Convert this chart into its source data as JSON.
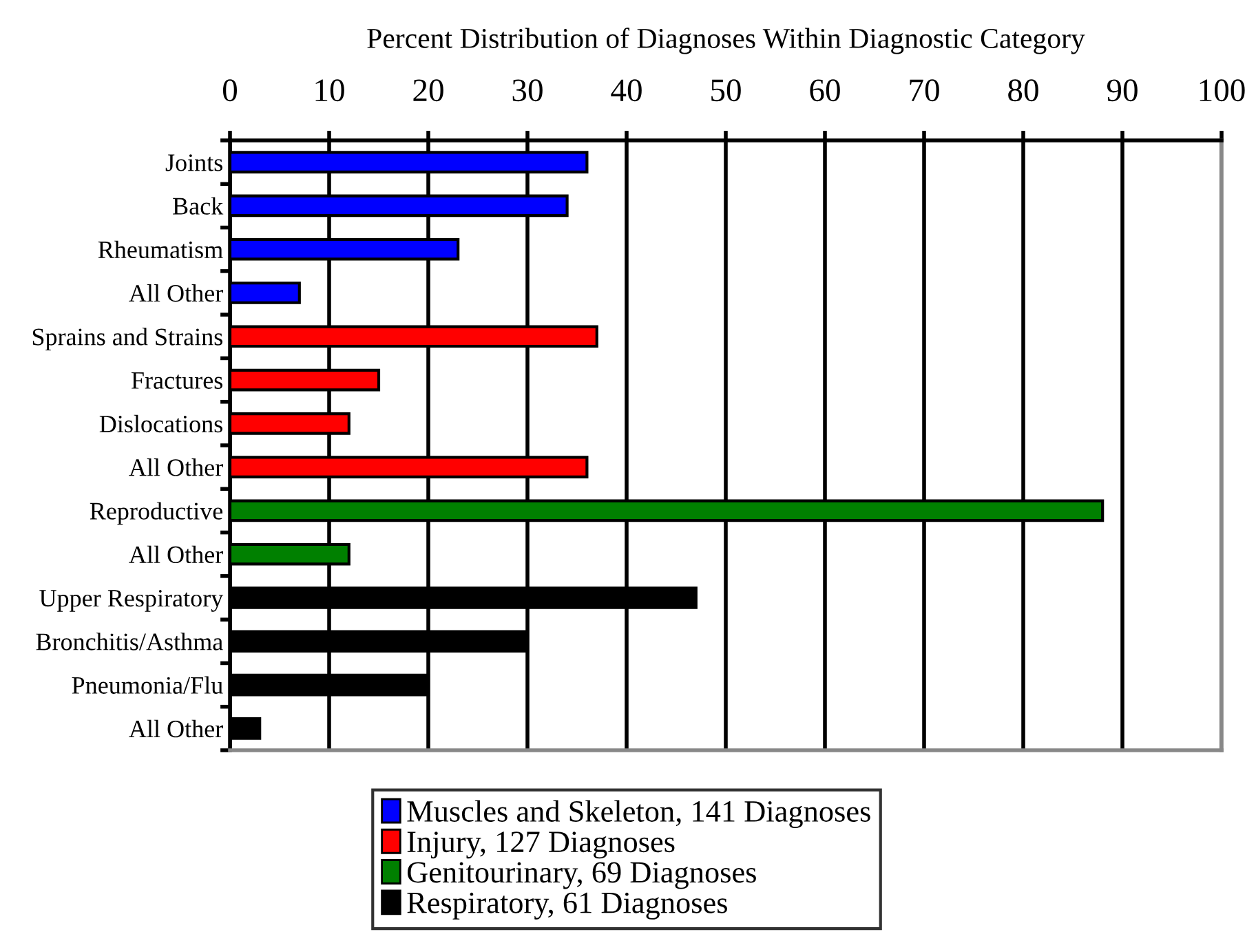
{
  "chart_data": {
    "type": "bar",
    "orientation": "horizontal",
    "xlabel": "Percent Distribution of Diagnoses Within Diagnostic Category",
    "categories": [
      "Joints",
      "Back",
      "Rheumatism",
      "All Other",
      "Sprains and Strains",
      "Fractures",
      "Dislocations",
      "All Other",
      "Reproductive",
      "All Other",
      "Upper Respiratory",
      "Bronchitis/Asthma",
      "Pneumonia/Flu",
      "All Other"
    ],
    "series": [
      {
        "name": "Muscles and Skeleton, 141 Diagnoses",
        "color": "#0000ff",
        "values": [
          36,
          34,
          23,
          7,
          null,
          null,
          null,
          null,
          null,
          null,
          null,
          null,
          null,
          null
        ]
      },
      {
        "name": "Injury, 127 Diagnoses",
        "color": "#ff0000",
        "values": [
          null,
          null,
          null,
          null,
          37,
          15,
          12,
          36,
          null,
          null,
          null,
          null,
          null,
          null
        ]
      },
      {
        "name": "Genitourinary, 69 Diagnoses",
        "color": "#008000",
        "values": [
          null,
          null,
          null,
          null,
          null,
          null,
          null,
          null,
          88,
          12,
          null,
          null,
          null,
          null
        ]
      },
      {
        "name": "Respiratory, 61 Diagnoses",
        "color": "#000000",
        "values": [
          null,
          null,
          null,
          null,
          null,
          null,
          null,
          null,
          null,
          null,
          47,
          30,
          20,
          3
        ]
      }
    ],
    "xlim": [
      0,
      100
    ],
    "xticks": [
      0,
      10,
      20,
      30,
      40,
      50,
      60,
      70,
      80,
      90,
      100
    ],
    "grid": "x",
    "legend": "bottom"
  }
}
